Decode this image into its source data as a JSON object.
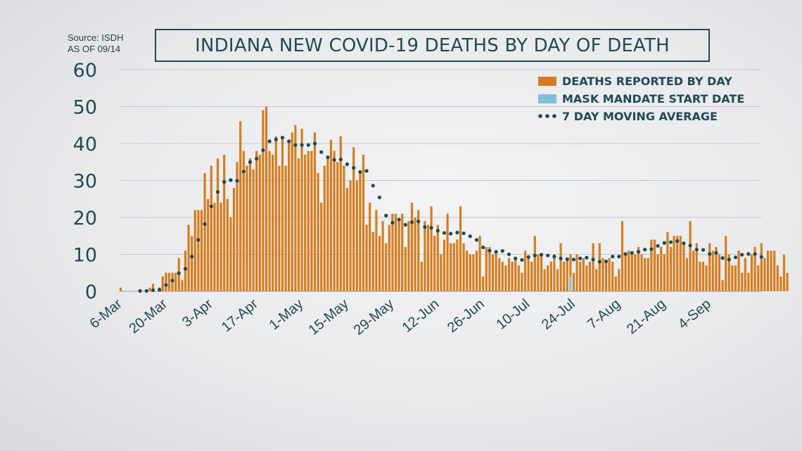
{
  "source_note": {
    "line1": "Source: ISDH",
    "line2": "AS OF 09/14"
  },
  "colors": {
    "bar": "#d47d1f",
    "mask": "#7cc0dc",
    "avg": "#1f4a55",
    "grid": "#c3c6c9",
    "text": "#1f4a55"
  },
  "chart_data": {
    "type": "bar",
    "title": "INDIANA NEW COVID-19 DEATHS BY DAY OF DEATH",
    "xlabel": "",
    "ylabel": "",
    "ylim": [
      0,
      60
    ],
    "yticks": [
      0,
      10,
      20,
      30,
      40,
      50,
      60
    ],
    "grid": true,
    "legend_position": "top-right",
    "x_start": "6-Mar",
    "x_tick_labels": [
      "6-Mar",
      "20-Mar",
      "3-Apr",
      "17-Apr",
      "1-May",
      "15-May",
      "29-May",
      "12-Jun",
      "26-Jun",
      "10-Jul",
      "24-Jul",
      "7-Aug",
      "21-Aug",
      "4-Sep"
    ],
    "legend": [
      {
        "label": "DEATHS REPORTED BY DAY",
        "kind": "bar"
      },
      {
        "label": "MASK MANDATE START DATE",
        "kind": "mask"
      },
      {
        "label": "7 DAY MOVING AVERAGE",
        "kind": "dots"
      }
    ],
    "series": [
      {
        "name": "DEATHS REPORTED BY DAY",
        "values": [
          1,
          0,
          0,
          0,
          0,
          0,
          0,
          0,
          0,
          1,
          2,
          0,
          1,
          4,
          5,
          5,
          5,
          5,
          9,
          3,
          11,
          18,
          15,
          22,
          22,
          22,
          32,
          25,
          34,
          24,
          36,
          24,
          37,
          25,
          20,
          28,
          35,
          46,
          38,
          34,
          36,
          33,
          38,
          37,
          49,
          50,
          38,
          37,
          42,
          34,
          42,
          34,
          41,
          43,
          45,
          36,
          44,
          37,
          38,
          38,
          43,
          32,
          24,
          34,
          36,
          41,
          38,
          35,
          42,
          34,
          28,
          30,
          39,
          30,
          32,
          37,
          18,
          24,
          16,
          22,
          15,
          19,
          13,
          18,
          21,
          21,
          19,
          21,
          12,
          19,
          24,
          20,
          22,
          8,
          19,
          18,
          23,
          15,
          18,
          10,
          14,
          21,
          13,
          13,
          14,
          23,
          13,
          11,
          10,
          10,
          11,
          15,
          4,
          12,
          12,
          10,
          11,
          9,
          8,
          7,
          9,
          8,
          9,
          7,
          5,
          11,
          9,
          8,
          15,
          10,
          10,
          6,
          7,
          8,
          10,
          6,
          13,
          8,
          9,
          10,
          5,
          10,
          8,
          9,
          7,
          8,
          13,
          6,
          13,
          9,
          8,
          9,
          8,
          4,
          6,
          19,
          10,
          11,
          10,
          10,
          12,
          10,
          9,
          9,
          14,
          14,
          10,
          12,
          10,
          16,
          12,
          15,
          15,
          15,
          13,
          9,
          19,
          11,
          13,
          8,
          8,
          7,
          13,
          11,
          12,
          10,
          3,
          15,
          10,
          7,
          7,
          11,
          5,
          9,
          5,
          10,
          12,
          7,
          13,
          9,
          11,
          11,
          11,
          7,
          4,
          10,
          5
        ]
      },
      {
        "name": "MASK MANDATE START DATE",
        "index": 139,
        "value": 4
      },
      {
        "name": "7 DAY MOVING AVERAGE",
        "values": [
          null,
          null,
          null,
          null,
          null,
          null,
          0.1,
          0.1,
          0.1,
          0.1,
          0.3,
          0.4,
          0.4,
          1.0,
          1.7,
          2.4,
          2.9,
          3.6,
          4.9,
          5.1,
          6.1,
          8.0,
          9.4,
          11.6,
          13.9,
          15.9,
          18.2,
          20.0,
          23.0,
          24.4,
          26.9,
          27.9,
          29.6,
          29.9,
          30.1,
          30.3,
          29.9,
          31.0,
          32.4,
          34.0,
          35.0,
          35.8,
          35.9,
          36.9,
          38.2,
          39.4,
          40.6,
          41.0,
          41.1,
          41.3,
          41.6,
          41.0,
          40.6,
          40.9,
          39.6,
          39.4,
          39.6,
          39.7,
          39.6,
          39.6,
          40.0,
          38.6,
          37.7,
          37.0,
          36.3,
          36.2,
          35.6,
          35.7,
          35.7,
          34.9,
          34.4,
          34.1,
          33.4,
          33.6,
          32.3,
          32.5,
          32.6,
          30.0,
          28.6,
          26.6,
          25.4,
          22.4,
          20.5,
          18.9,
          18.6,
          19.0,
          19.4,
          19.4,
          18.0,
          18.0,
          18.7,
          19.0,
          18.9,
          18.7,
          17.4,
          18.1,
          17.2,
          17.1,
          16.4,
          16.4,
          15.8,
          15.6,
          15.6,
          15.6,
          15.9,
          15.1,
          15.7,
          15.1,
          14.9,
          14.3,
          13.9,
          13.1,
          11.9,
          10.9,
          11.0,
          10.7,
          10.7,
          10.8,
          10.9,
          10.3,
          10.0,
          10.3,
          8.9,
          8.9,
          8.5,
          8.7,
          9.3,
          9.4,
          9.7,
          9.9,
          9.9,
          9.4,
          9.7,
          9.0,
          9.4,
          8.7,
          8.9,
          9.3,
          8.7,
          9.1,
          8.6,
          8.7,
          8.9,
          8.9,
          9.1,
          8.6,
          8.6,
          8.7,
          8.0,
          8.1,
          8.1,
          9.6,
          9.4,
          9.3,
          9.4,
          10.0,
          10.1,
          10.3,
          10.4,
          10.5,
          10.7,
          11.0,
          11.3,
          11.4,
          11.4,
          12.3,
          12.3,
          12.9,
          13.1,
          13.5,
          13.3,
          13.6,
          13.6,
          13.3,
          13.0,
          12.6,
          12.4,
          11.3,
          11.3,
          11.5,
          11.2,
          10.6,
          10.1,
          10.0,
          10.4,
          9.4,
          9.0,
          9.1,
          8.6,
          8.9,
          9.2,
          9.2,
          9.9,
          9.9,
          10.1,
          9.9,
          10.1,
          9.7,
          9.3
        ]
      }
    ]
  }
}
